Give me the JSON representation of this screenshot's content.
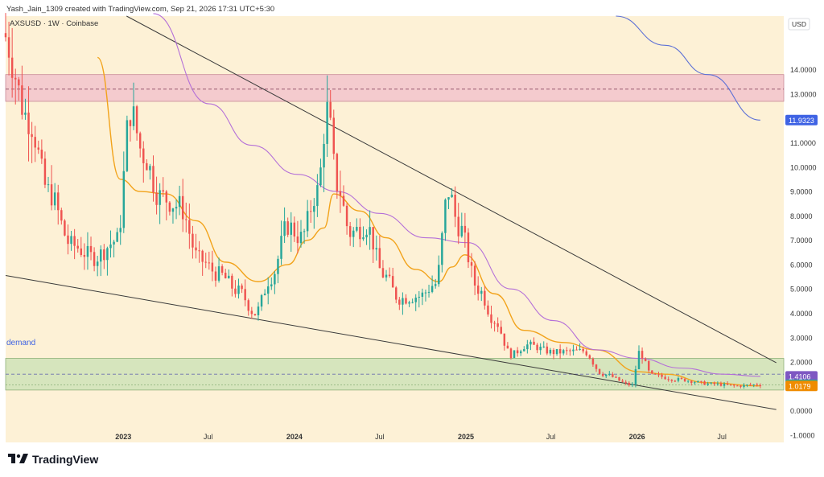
{
  "header": {
    "attribution": "Yash_Jain_1309 created with TradingView.com, Sep 21, 2026 17:31 UTC+5:30"
  },
  "symbol_label": "AXSUSD · 1W · Coinbase",
  "currency": "USD",
  "brand": {
    "name": "TradingView"
  },
  "colors": {
    "background": "#fdf1d6",
    "bull": "#26a69a",
    "bear": "#ef5350",
    "ma_fast": "#f2a31b",
    "ma_slow": "#b46fd8",
    "ma_long": "#5b6fd6",
    "trendline": "#3a3a3a",
    "supply_zone": "#f2c4cc",
    "demand_zone": "#cfe3b9"
  },
  "chart_data": {
    "type": "candlestick",
    "title": "AXSUSD · 1W · Coinbase",
    "x_ticks": [
      {
        "label": "2023",
        "date": "2023-01-01"
      },
      {
        "label": "Jul",
        "date": "2023-07-01"
      },
      {
        "label": "2024",
        "date": "2024-01-01"
      },
      {
        "label": "Jul",
        "date": "2024-07-01"
      },
      {
        "label": "2025",
        "date": "2025-01-01"
      },
      {
        "label": "Jul",
        "date": "2025-07-01"
      },
      {
        "label": "2026",
        "date": "2026-01-01"
      },
      {
        "label": "Jul",
        "date": "2026-07-01"
      }
    ],
    "x_range": [
      "2022-04-25",
      "2026-11-10"
    ],
    "y_ticks": [
      -1,
      0,
      1,
      2,
      3,
      4,
      5,
      6,
      7,
      8,
      9,
      10,
      11,
      12,
      13,
      14
    ],
    "y_tick_labels": [
      "-1.0000",
      "0.0000",
      "1.0000",
      "2.0000",
      "3.0000",
      "4.0000",
      "5.0000",
      "6.0000",
      "7.0000",
      "8.0000",
      "9.0000",
      "10.0000",
      "11.0000",
      "12.0000",
      "13.0000",
      "14.0000"
    ],
    "ylim": [
      -1.3,
      16.2
    ],
    "grid": false,
    "zones": [
      {
        "name": "supply",
        "label": "",
        "from": 12.7,
        "to": 13.8,
        "midline": 13.2
      },
      {
        "name": "demand",
        "label": "demand",
        "from": 0.85,
        "to": 2.15,
        "midline": 1.5
      }
    ],
    "trendlines": [
      {
        "from": [
          "2023-01-08",
          16.2
        ],
        "to": [
          "2026-10-25",
          1.97
        ]
      },
      {
        "from": [
          "2022-04-25",
          5.55
        ],
        "to": [
          "2026-10-25",
          0.05
        ]
      }
    ],
    "price_labels": [
      {
        "value": 11.9323,
        "text": "11.9323",
        "color": "#3f63e4"
      },
      {
        "value": 1.4106,
        "text": "1.4106",
        "color": "#7e57c2"
      },
      {
        "value": 1.067,
        "text": "1.0670",
        "color": "#26a69a"
      },
      {
        "value": 1.0179,
        "text": "1.0179",
        "color": "#ef8c00"
      }
    ],
    "anchors": [
      [
        "2022-04-25",
        15.5
      ],
      [
        "2022-06-20",
        12.0
      ],
      [
        "2022-08-01",
        9.0
      ],
      [
        "2022-09-19",
        6.8
      ],
      [
        "2022-11-07",
        6.3
      ],
      [
        "2022-12-26",
        7.0
      ],
      [
        "2023-01-23",
        12.3
      ],
      [
        "2023-02-20",
        10.5
      ],
      [
        "2023-03-27",
        8.8
      ],
      [
        "2023-05-08",
        8.4
      ],
      [
        "2023-06-19",
        6.2
      ],
      [
        "2023-07-31",
        5.6
      ],
      [
        "2023-09-11",
        4.9
      ],
      [
        "2023-10-16",
        4.0
      ],
      [
        "2023-11-20",
        5.5
      ],
      [
        "2023-12-25",
        7.6
      ],
      [
        "2024-01-22",
        7.1
      ],
      [
        "2024-02-26",
        9.0
      ],
      [
        "2024-03-18",
        12.3
      ],
      [
        "2024-04-08",
        9.3
      ],
      [
        "2024-05-06",
        7.3
      ],
      [
        "2024-06-10",
        7.6
      ],
      [
        "2024-07-15",
        5.6
      ],
      [
        "2024-08-19",
        4.6
      ],
      [
        "2024-09-30",
        4.7
      ],
      [
        "2024-11-04",
        5.2
      ],
      [
        "2024-12-02",
        9.0
      ],
      [
        "2024-12-23",
        7.6
      ],
      [
        "2025-02-03",
        5.0
      ],
      [
        "2025-03-10",
        3.7
      ],
      [
        "2025-04-14",
        2.3
      ],
      [
        "2025-05-19",
        2.7
      ],
      [
        "2025-07-14",
        2.4
      ],
      [
        "2025-09-15",
        2.45
      ],
      [
        "2025-10-27",
        1.5
      ],
      [
        "2025-12-29",
        1.05
      ],
      [
        "2026-01-12",
        2.4
      ],
      [
        "2026-02-09",
        1.45
      ],
      [
        "2026-04-06",
        1.28
      ],
      [
        "2026-06-15",
        1.1
      ],
      [
        "2026-08-10",
        1.02
      ],
      [
        "2026-09-21",
        1.07
      ]
    ],
    "series": [
      {
        "name": "",
        "kind": "sma_fast",
        "color": "#f2a31b",
        "points": [
          [
            "2022-11-07",
            14.5
          ],
          [
            "2022-12-26",
            9.5
          ],
          [
            "2023-02-06",
            9.0
          ],
          [
            "2023-04-03",
            8.9
          ],
          [
            "2023-06-05",
            7.8
          ],
          [
            "2023-08-07",
            6.1
          ],
          [
            "2023-10-16",
            5.3
          ],
          [
            "2023-12-18",
            6.0
          ],
          [
            "2024-01-29",
            7.0
          ],
          [
            "2024-03-04",
            7.5
          ],
          [
            "2024-03-25",
            8.9
          ],
          [
            "2024-05-20",
            8.2
          ],
          [
            "2024-07-15",
            7.1
          ],
          [
            "2024-09-16",
            5.8
          ],
          [
            "2024-11-04",
            5.3
          ],
          [
            "2024-12-02",
            5.9
          ],
          [
            "2024-12-30",
            6.4
          ],
          [
            "2025-03-03",
            4.8
          ],
          [
            "2025-05-05",
            3.3
          ],
          [
            "2025-07-28",
            2.8
          ],
          [
            "2025-10-06",
            2.5
          ],
          [
            "2026-01-05",
            1.6
          ],
          [
            "2026-03-02",
            1.5
          ],
          [
            "2026-06-01",
            1.15
          ],
          [
            "2026-09-21",
            1.02
          ]
        ]
      },
      {
        "name": "",
        "kind": "sma_slow",
        "color": "#b46fd8",
        "points": [
          [
            "2023-03-06",
            16.3
          ],
          [
            "2023-07-03",
            12.6
          ],
          [
            "2023-10-02",
            10.9
          ],
          [
            "2024-01-08",
            9.7
          ],
          [
            "2024-04-01",
            9.0
          ],
          [
            "2024-07-01",
            8.1
          ],
          [
            "2024-10-07",
            7.1
          ],
          [
            "2025-01-06",
            6.9
          ],
          [
            "2025-04-07",
            5.0
          ],
          [
            "2025-07-07",
            3.7
          ],
          [
            "2025-10-06",
            2.5
          ],
          [
            "2026-01-05",
            2.15
          ],
          [
            "2026-04-06",
            1.75
          ],
          [
            "2026-07-06",
            1.5
          ],
          [
            "2026-09-21",
            1.41
          ]
        ]
      },
      {
        "name": "",
        "kind": "sma_long",
        "color": "#5b6fd6",
        "points": [
          [
            "2025-11-17",
            16.2
          ],
          [
            "2026-03-02",
            15.0
          ],
          [
            "2026-06-01",
            13.8
          ],
          [
            "2026-09-21",
            11.93
          ]
        ]
      }
    ]
  }
}
